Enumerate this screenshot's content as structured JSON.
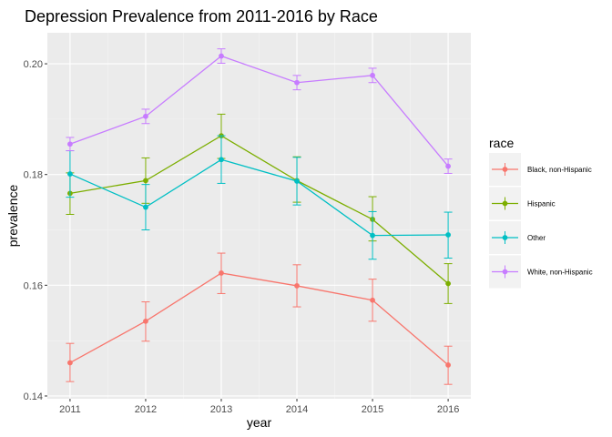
{
  "chart_data": {
    "type": "line",
    "title": "Depression Prevalence from 2011-2016 by Race",
    "xlabel": "year",
    "ylabel": "prevalence",
    "x": [
      2011,
      2012,
      2013,
      2014,
      2015,
      2016
    ],
    "x_tick_labels": [
      "2011",
      "2012",
      "2013",
      "2014",
      "2015",
      "2016"
    ],
    "xlim": [
      2010.7,
      2016.3
    ],
    "ylim": [
      0.1395,
      0.2056
    ],
    "y_ticks": [
      0.14,
      0.16,
      0.18,
      0.2
    ],
    "y_tick_labels": [
      "0.14",
      "0.16",
      "0.18",
      "0.20"
    ],
    "y_minor_ticks": [
      0.15,
      0.17,
      0.19
    ],
    "grid": true,
    "error_bars": true,
    "legend": {
      "title": "race",
      "placement": "right"
    },
    "series": [
      {
        "name": "Black, non-Hispanic",
        "color": "#F8766D",
        "values": [
          0.146,
          0.1535,
          0.1622,
          0.1599,
          0.1573,
          0.1456
        ],
        "lower": [
          0.1426,
          0.1499,
          0.1585,
          0.1561,
          0.1535,
          0.1421
        ],
        "upper": [
          0.1495,
          0.157,
          0.1658,
          0.1637,
          0.1611,
          0.149
        ]
      },
      {
        "name": "Hispanic",
        "color": "#7CAE00",
        "values": [
          0.1766,
          0.1789,
          0.187,
          0.1789,
          0.1719,
          0.1603
        ],
        "lower": [
          0.1728,
          0.1748,
          0.1829,
          0.175,
          0.168,
          0.1567
        ],
        "upper": [
          0.1803,
          0.183,
          0.1909,
          0.1832,
          0.176,
          0.1639
        ]
      },
      {
        "name": "Other",
        "color": "#00BFC4",
        "values": [
          0.1801,
          0.1741,
          0.1827,
          0.1788,
          0.169,
          0.1691
        ],
        "lower": [
          0.1759,
          0.17,
          0.1784,
          0.1745,
          0.1647,
          0.1649
        ],
        "upper": [
          0.1843,
          0.1782,
          0.187,
          0.1831,
          0.1733,
          0.1732
        ]
      },
      {
        "name": "White, non-Hispanic",
        "color": "#C77CFF",
        "values": [
          0.1855,
          0.1905,
          0.2014,
          0.1966,
          0.1979,
          0.1815
        ],
        "lower": [
          0.1843,
          0.1892,
          0.2001,
          0.1953,
          0.1966,
          0.1802
        ],
        "upper": [
          0.1867,
          0.1918,
          0.2027,
          0.1979,
          0.1992,
          0.1828
        ]
      }
    ]
  }
}
